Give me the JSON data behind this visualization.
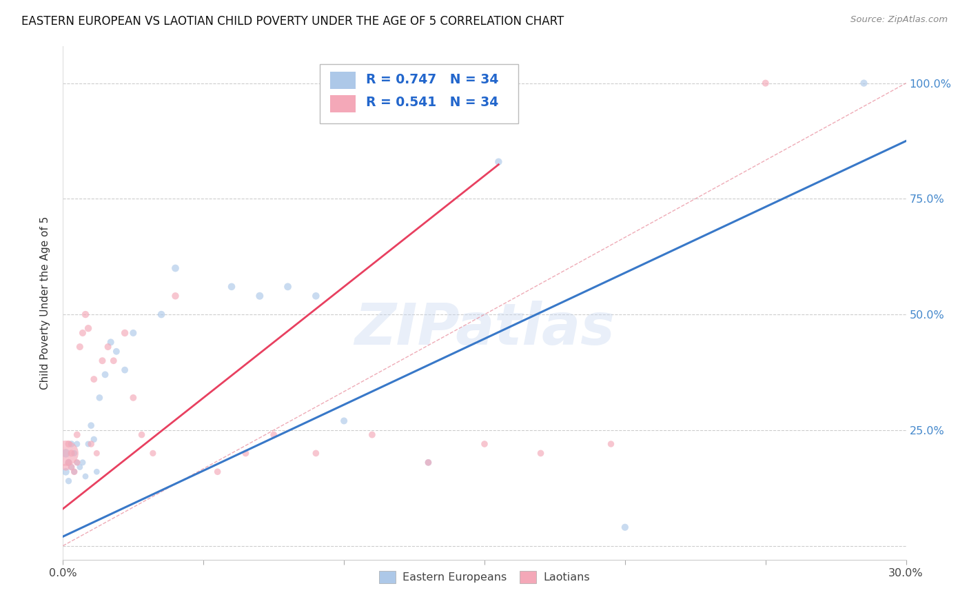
{
  "title": "EASTERN EUROPEAN VS LAOTIAN CHILD POVERTY UNDER THE AGE OF 5 CORRELATION CHART",
  "source": "Source: ZipAtlas.com",
  "ylabel": "Child Poverty Under the Age of 5",
  "xlim": [
    0.0,
    0.3
  ],
  "ylim": [
    -0.03,
    1.08
  ],
  "xtick_vals": [
    0.0,
    0.05,
    0.1,
    0.15,
    0.2,
    0.25,
    0.3
  ],
  "xtick_labels": [
    "0.0%",
    "",
    "",
    "",
    "",
    "",
    "30.0%"
  ],
  "ytick_vals": [
    0.0,
    0.25,
    0.5,
    0.75,
    1.0
  ],
  "ytick_labels_right": [
    "",
    "25.0%",
    "50.0%",
    "75.0%",
    "100.0%"
  ],
  "legend_r_blue": "R = 0.747",
  "legend_n_blue": "N = 34",
  "legend_r_pink": "R = 0.541",
  "legend_n_pink": "N = 34",
  "blue_scatter_color": "#adc8e8",
  "pink_scatter_color": "#f4a8b8",
  "line_blue_color": "#3878c8",
  "line_pink_color": "#e84060",
  "diag_color": "#e88898",
  "watermark": "ZIPatlas",
  "ee_x": [
    0.001,
    0.001,
    0.002,
    0.002,
    0.003,
    0.003,
    0.004,
    0.004,
    0.005,
    0.005,
    0.006,
    0.007,
    0.008,
    0.009,
    0.01,
    0.011,
    0.012,
    0.013,
    0.015,
    0.017,
    0.019,
    0.022,
    0.025,
    0.035,
    0.04,
    0.06,
    0.07,
    0.08,
    0.09,
    0.1,
    0.13,
    0.155,
    0.2,
    0.285
  ],
  "ee_y": [
    0.2,
    0.16,
    0.18,
    0.14,
    0.22,
    0.17,
    0.16,
    0.2,
    0.18,
    0.22,
    0.17,
    0.18,
    0.15,
    0.22,
    0.26,
    0.23,
    0.16,
    0.32,
    0.37,
    0.44,
    0.42,
    0.38,
    0.46,
    0.5,
    0.6,
    0.56,
    0.54,
    0.56,
    0.54,
    0.27,
    0.18,
    0.83,
    0.04,
    1.0
  ],
  "ee_s": [
    80,
    60,
    50,
    45,
    48,
    42,
    40,
    42,
    38,
    42,
    40,
    42,
    40,
    42,
    48,
    45,
    40,
    48,
    50,
    52,
    50,
    50,
    52,
    58,
    60,
    58,
    62,
    60,
    58,
    52,
    48,
    56,
    54,
    54
  ],
  "la_x": [
    0.001,
    0.001,
    0.002,
    0.002,
    0.003,
    0.003,
    0.004,
    0.005,
    0.005,
    0.006,
    0.007,
    0.008,
    0.009,
    0.01,
    0.011,
    0.012,
    0.014,
    0.016,
    0.018,
    0.022,
    0.025,
    0.028,
    0.032,
    0.04,
    0.055,
    0.065,
    0.075,
    0.09,
    0.11,
    0.13,
    0.15,
    0.17,
    0.195,
    0.25
  ],
  "la_y": [
    0.2,
    0.17,
    0.18,
    0.22,
    0.17,
    0.2,
    0.16,
    0.18,
    0.24,
    0.43,
    0.46,
    0.5,
    0.47,
    0.22,
    0.36,
    0.2,
    0.4,
    0.43,
    0.4,
    0.46,
    0.32,
    0.24,
    0.2,
    0.54,
    0.16,
    0.2,
    0.24,
    0.2,
    0.24,
    0.18,
    0.22,
    0.2,
    0.22,
    1.0
  ],
  "la_s": [
    700,
    55,
    52,
    52,
    50,
    52,
    48,
    48,
    50,
    52,
    52,
    56,
    56,
    48,
    50,
    42,
    52,
    52,
    50,
    56,
    50,
    48,
    44,
    56,
    48,
    50,
    50,
    48,
    50,
    48,
    48,
    48,
    46,
    52
  ],
  "blue_slope": 2.85,
  "blue_intercept": 0.02,
  "pink_slope": 4.8,
  "pink_intercept": 0.08,
  "pink_line_xmax": 0.155
}
